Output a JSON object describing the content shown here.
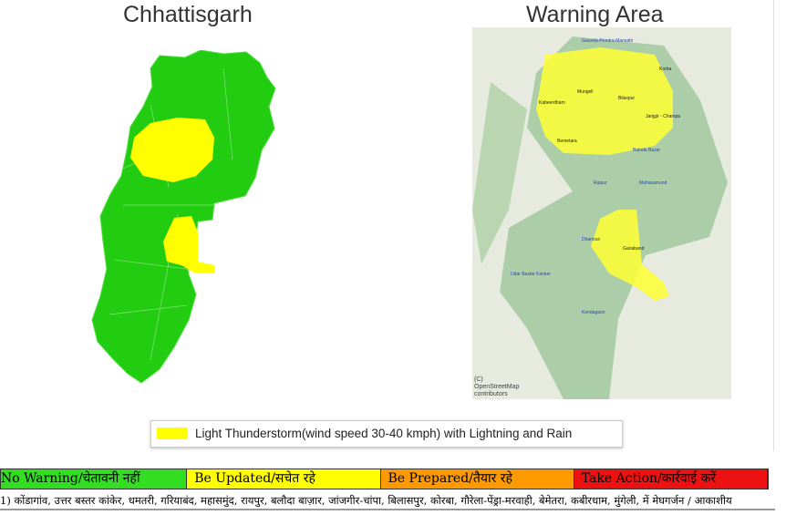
{
  "titles": {
    "left": "Chhattisgarh",
    "right": "Warning Area"
  },
  "map_labels": [
    "Gaurela-Pendra-Marwahi",
    "Korba",
    "Mungeli",
    "Kabeerdham",
    "Bilaspur",
    "Janjgir - Champa",
    "Bemetara",
    "Baloda Bazar",
    "Raipur",
    "Mahasamund",
    "Dhamtari",
    "Gariaband",
    "Uttar Bastar Kanker",
    "Kondagaon"
  ],
  "attribution": "(C) OpenStreetMap contributors",
  "legend": {
    "label": "Light Thunderstorm(wind speed 30-40 kmph) with Lightning and Rain",
    "color": "#ffff00"
  },
  "warning_levels": [
    {
      "label": "No Warning/चेतावनी नहीं",
      "color": "#33dd22"
    },
    {
      "label": "Be Updated/सचेत रहे",
      "color": "#ffff00"
    },
    {
      "label": "Be Prepared/तैयार रहे",
      "color": "#ff9900"
    },
    {
      "label": "Take Action/कार्रवाई करें",
      "color": "#ee1111"
    }
  ],
  "note": "1) कोंडागांव, उत्तर बस्तर कांकेर, धमतरी, गरियाबंद, महासमुंद, रायपुर, बलौदा बाज़ार, जांजगीर-चांपा, बिलासपुर, कोरबा, गौरेला-पेंड्रा-मरवाही, बेमेतरा, कबीरधाम, मुंगेली,  में मेघगर्जन / आकाशीय"
}
